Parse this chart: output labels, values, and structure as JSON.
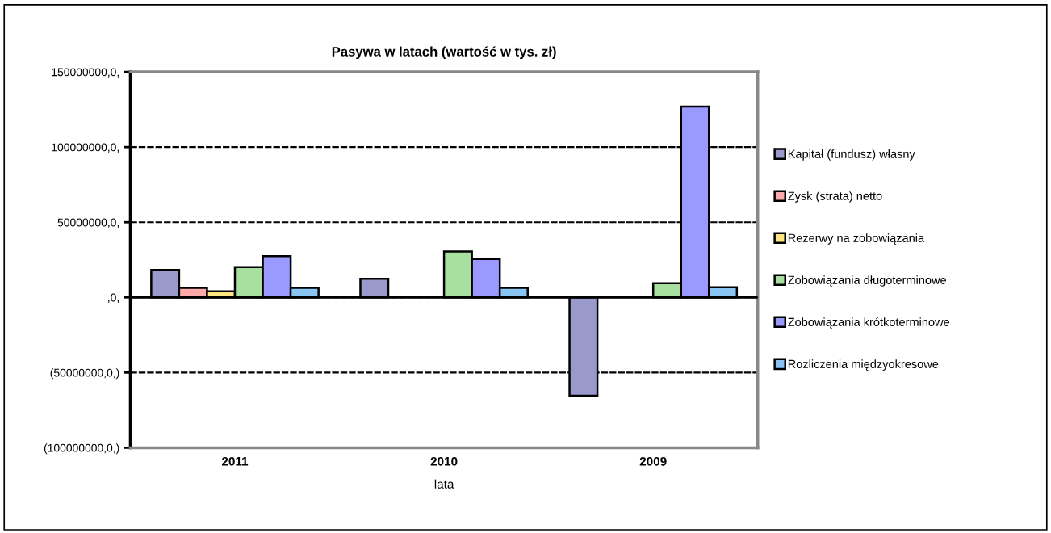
{
  "chart_data": {
    "type": "bar",
    "title": "Pasywa w latach (wartość w tys. zł)",
    "xlabel": "lata",
    "categories": [
      "2011",
      "2010",
      "2009"
    ],
    "series": [
      {
        "name": "Kapitał (fundusz) własny",
        "color": "#9999cc",
        "values": [
          18300000,
          12400000,
          -65400000
        ]
      },
      {
        "name": "Zysk (strata) netto",
        "color": "#ffaaaa",
        "values": [
          6300000,
          null,
          null
        ]
      },
      {
        "name": "Rezerwy na zobowiązania",
        "color": "#ffe680",
        "values": [
          4100000,
          null,
          null
        ]
      },
      {
        "name": "Zobowiązania długoterminowe",
        "color": "#a8e0a0",
        "values": [
          20100000,
          30500000,
          9400000
        ]
      },
      {
        "name": "Zobowiązania krótkoterminowe",
        "color": "#9999ff",
        "values": [
          27400000,
          25500000,
          126900000
        ]
      },
      {
        "name": "Rozliczenia międzyokresowe",
        "color": "#88c4f4",
        "values": [
          6300000,
          6300000,
          6700000
        ]
      }
    ],
    "ylim": [
      -100000000,
      150000000
    ],
    "yticks": [
      {
        "value": -100000000,
        "label": "(100000000,0,)"
      },
      {
        "value": -50000000,
        "label": "(50000000,0,)"
      },
      {
        "value": 0,
        "label": ",0,"
      },
      {
        "value": 50000000,
        "label": "50000000,0,"
      },
      {
        "value": 100000000,
        "label": "100000000,0,"
      },
      {
        "value": 150000000,
        "label": "150000000,0,"
      }
    ],
    "grid": "y",
    "legend": "right"
  }
}
